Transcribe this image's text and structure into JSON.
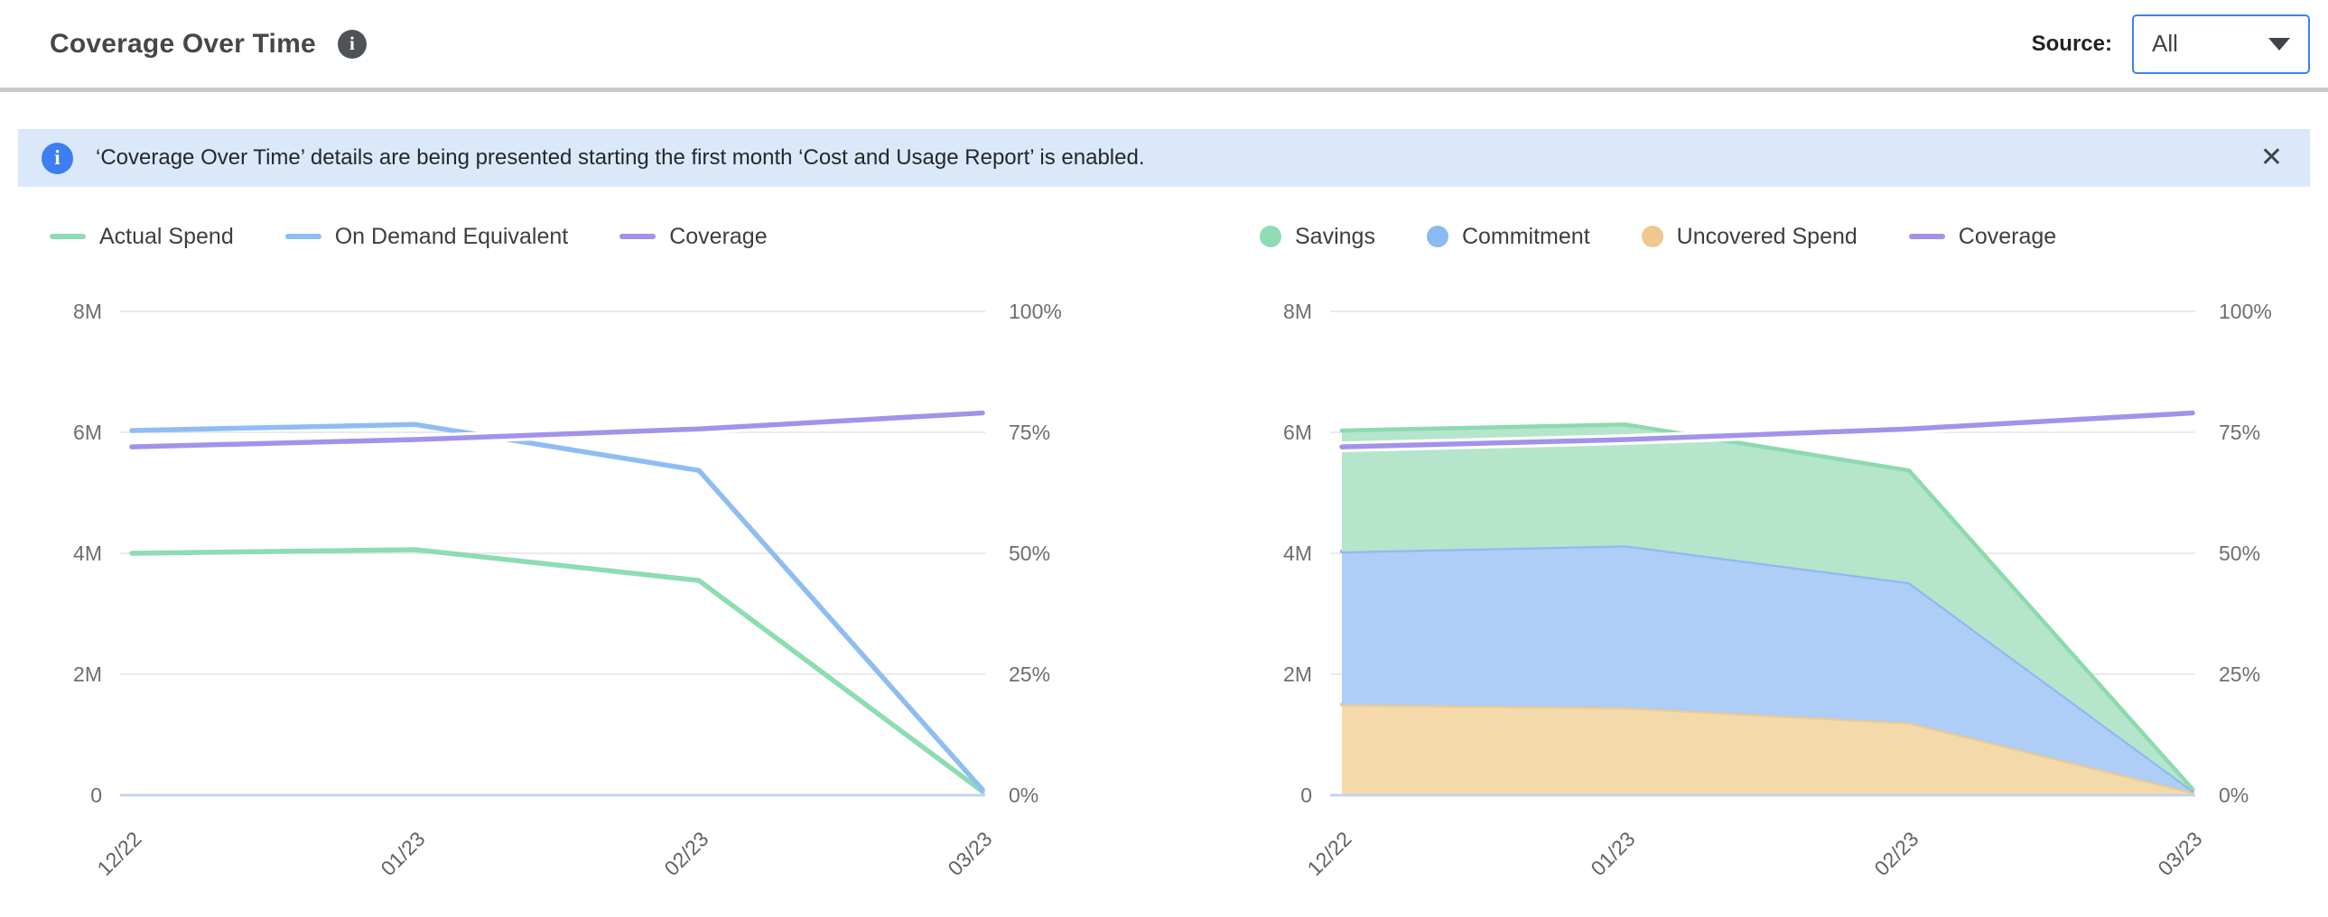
{
  "header": {
    "title": "Coverage Over Time",
    "info_icon": "i",
    "source_label": "Source:",
    "source_value": "All"
  },
  "banner": {
    "info_icon": "i",
    "text": "‘Coverage Over Time’ details are being presented starting the first month ‘Cost and Usage Report’ is enabled.",
    "close_glyph": "✕"
  },
  "colors": {
    "accent_blue": "#3b82f6",
    "banner_bg": "#dbe8fa",
    "banner_icon_bg": "#3d7ff2",
    "divider": "#c9c9c9",
    "grid": "#e4e4e4",
    "baseline": "#c5d3ee",
    "green_line": "#8edcb2",
    "green_fill": "#b5e5cb",
    "blue_line": "#8fbdf2",
    "blue_fill": "#aecdf7",
    "orange_edge": "#eccb90",
    "orange_fill": "#f4daab",
    "purple_line": "#a392eb"
  },
  "chart_data": [
    {
      "type": "line",
      "title": "Spend vs Coverage",
      "x": [
        "12/22",
        "01/23",
        "02/23",
        "03/23"
      ],
      "series": [
        {
          "name": "Actual Spend",
          "kind": "line",
          "axis": "left",
          "color": "#8edcb2",
          "values": [
            4000000,
            4060000,
            3550000,
            60000
          ]
        },
        {
          "name": "On Demand Equivalent",
          "kind": "line",
          "axis": "left",
          "color": "#8fbdf2",
          "values": [
            6030000,
            6130000,
            5370000,
            90000
          ]
        },
        {
          "name": "Coverage",
          "kind": "line",
          "axis": "right",
          "color": "#a392eb",
          "halo": true,
          "values": [
            72,
            73.5,
            75.7,
            79
          ]
        }
      ],
      "left_axis": {
        "min": 0,
        "max": 8000000,
        "ticks": [
          "8M",
          "6M",
          "4M",
          "2M",
          "0"
        ]
      },
      "right_axis": {
        "min": 0,
        "max": 100,
        "ticks": [
          "100%",
          "75%",
          "50%",
          "25%",
          "0%"
        ]
      },
      "grid": true,
      "legend_position": "top",
      "legend": [
        {
          "label": "Actual Spend",
          "marker": "line",
          "color": "#8edcb2"
        },
        {
          "label": "On Demand Equivalent",
          "marker": "line",
          "color": "#8fbdf2"
        },
        {
          "label": "Coverage",
          "marker": "line",
          "color": "#a392eb"
        }
      ]
    },
    {
      "type": "area",
      "stacked": true,
      "title": "Savings / Commitment / Uncovered Spend vs Coverage",
      "x": [
        "12/22",
        "01/23",
        "02/23",
        "03/23"
      ],
      "series": [
        {
          "name": "Uncovered Spend",
          "kind": "area",
          "axis": "left",
          "fill": "#f4daab",
          "edge": "#eccb90",
          "values": [
            1500000,
            1450000,
            1200000,
            50000
          ]
        },
        {
          "name": "Commitment",
          "kind": "area",
          "axis": "left",
          "fill": "#aecdf7",
          "edge": "#8fb9f4",
          "values": [
            2530000,
            2680000,
            2320000,
            30000
          ]
        },
        {
          "name": "Savings",
          "kind": "area",
          "axis": "left",
          "fill": "#b5e5cb",
          "edge": "#8cdab0",
          "values": [
            2000000,
            2000000,
            1850000,
            20000
          ]
        },
        {
          "name": "Coverage",
          "kind": "line",
          "axis": "right",
          "color": "#a392eb",
          "halo": true,
          "values": [
            72,
            73.5,
            75.7,
            79
          ]
        }
      ],
      "left_axis": {
        "min": 0,
        "max": 8000000,
        "ticks": [
          "8M",
          "6M",
          "4M",
          "2M",
          "0"
        ]
      },
      "right_axis": {
        "min": 0,
        "max": 100,
        "ticks": [
          "100%",
          "75%",
          "50%",
          "25%",
          "0%"
        ]
      },
      "grid": true,
      "legend_position": "top",
      "legend": [
        {
          "label": "Savings",
          "marker": "circle",
          "color": "#8fdcb4"
        },
        {
          "label": "Commitment",
          "marker": "circle",
          "color": "#8bb9f2"
        },
        {
          "label": "Uncovered Spend",
          "marker": "circle",
          "color": "#eec88e"
        },
        {
          "label": "Coverage",
          "marker": "line",
          "color": "#a392eb"
        }
      ]
    }
  ]
}
